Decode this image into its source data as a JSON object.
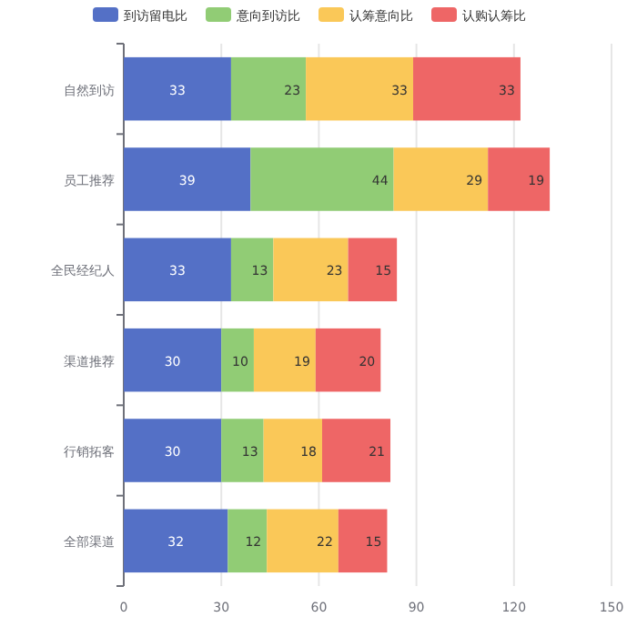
{
  "chart_data": {
    "type": "bar",
    "orientation": "horizontal",
    "stacked": true,
    "data_labels": true,
    "grid": "x",
    "legend": "top",
    "categories": [
      "自然到访",
      "员工推荐",
      "全民经纪人",
      "渠道推荐",
      "行销拓客",
      "全部渠道"
    ],
    "series": [
      {
        "name": "到访留电比",
        "color": "#5470c6",
        "values": [
          33,
          39,
          33,
          30,
          30,
          32
        ]
      },
      {
        "name": "意向到访比",
        "color": "#91cc75",
        "values": [
          23,
          44,
          13,
          10,
          13,
          12
        ]
      },
      {
        "name": "认筹意向比",
        "color": "#fac858",
        "values": [
          33,
          29,
          23,
          19,
          18,
          22
        ]
      },
      {
        "name": "认购认筹比",
        "color": "#ee6666",
        "values": [
          33,
          19,
          15,
          20,
          21,
          15
        ]
      }
    ],
    "xlim": [
      0,
      150
    ],
    "xticks": [
      0,
      30,
      60,
      90,
      120,
      150
    ]
  }
}
